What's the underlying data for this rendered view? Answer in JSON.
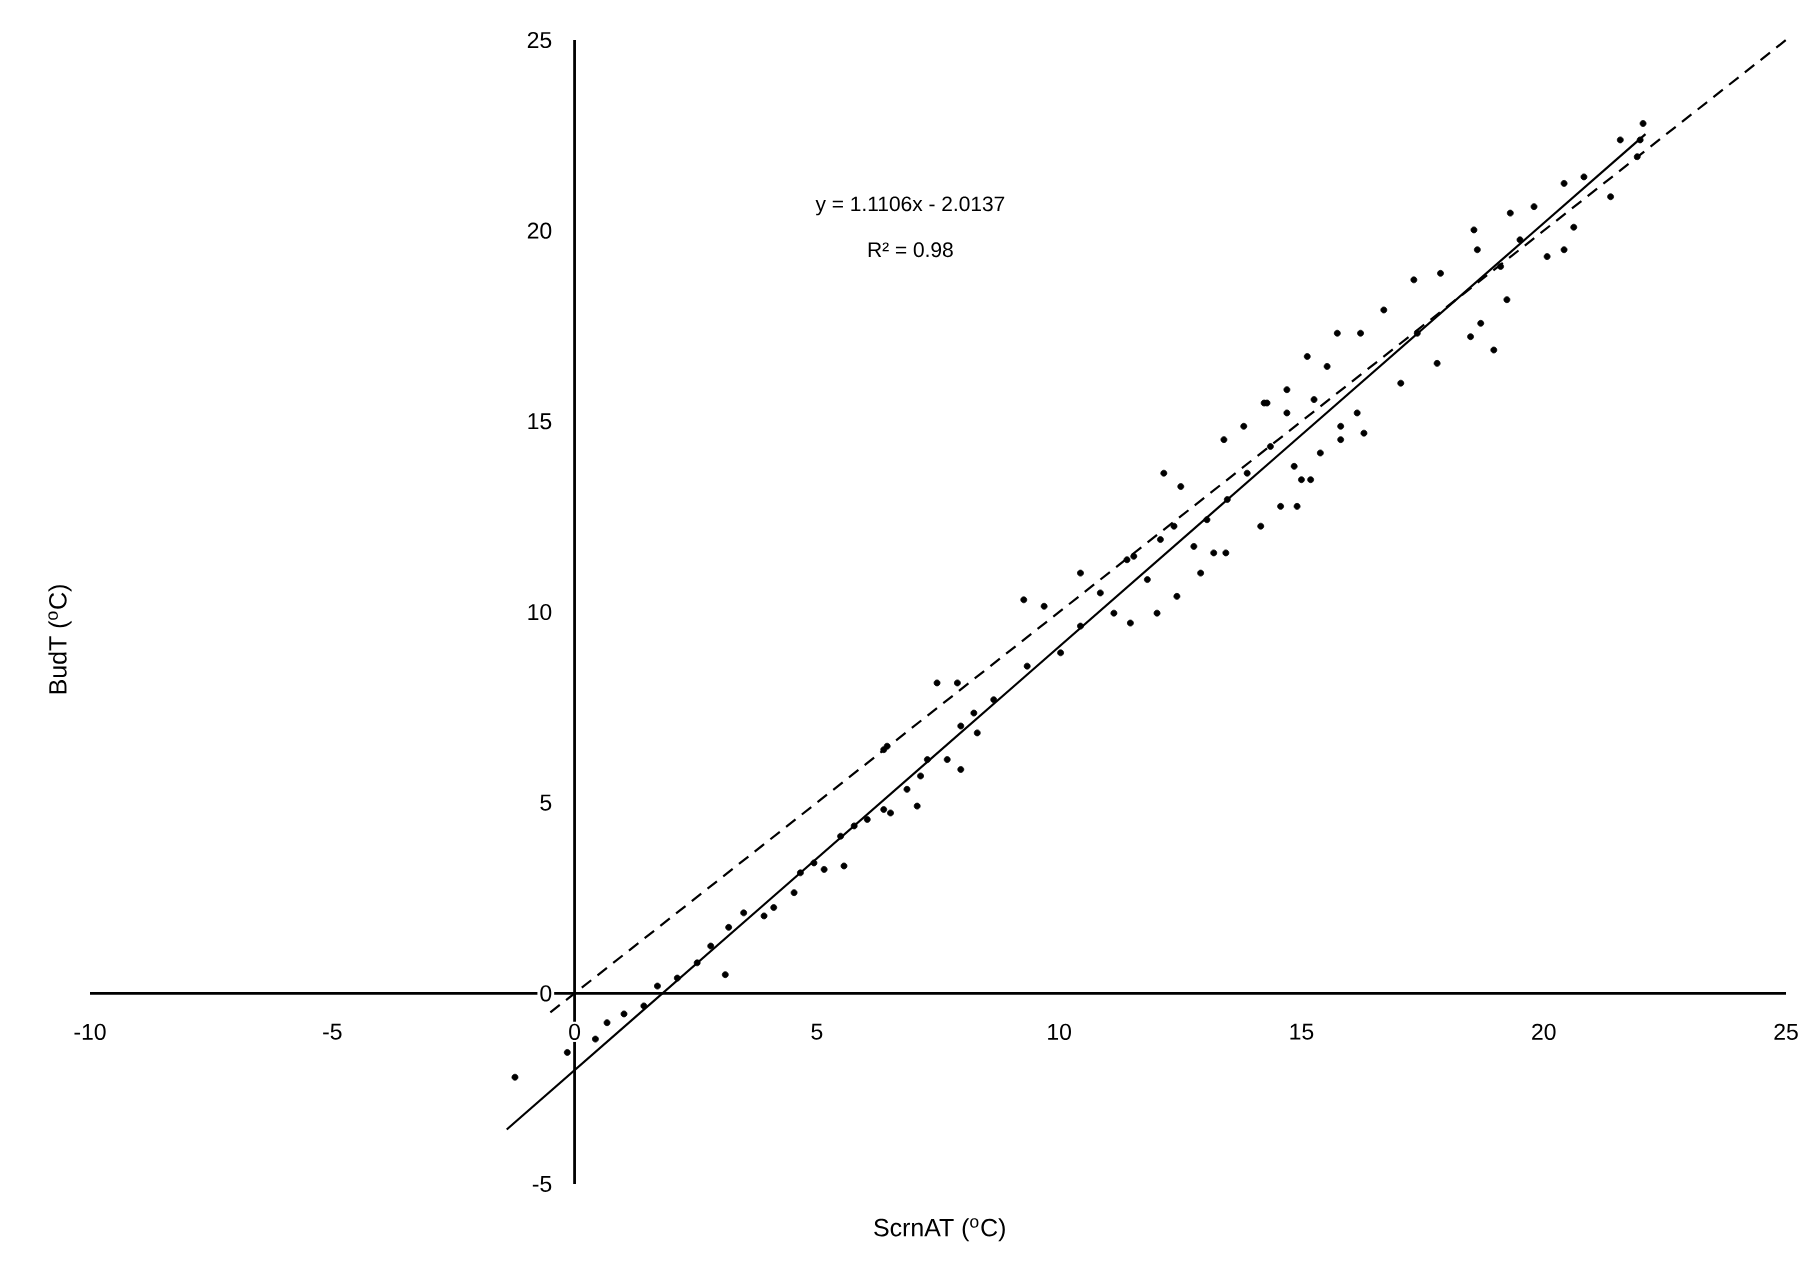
{
  "chart_data": {
    "type": "scatter",
    "xlabel": "ScrnAT ($^{o}$C)",
    "ylabel": "BudT ($^{o}$C)",
    "annotations": [
      "y = 1.1106x - 2.0137",
      "R² = 0.98"
    ],
    "xlim": [
      -10,
      25
    ],
    "ylim": [
      -5,
      25
    ],
    "xticks": [
      -10,
      -5,
      0,
      5,
      10,
      15,
      20,
      25
    ],
    "yticks": [
      -5,
      0,
      5,
      10,
      15,
      20,
      25
    ],
    "grid": false,
    "series": [
      {
        "marker": "circle",
        "color": "#000000",
        "x": [
          -1.23,
          -0.15,
          0.43,
          0.67,
          1.02,
          1.43,
          1.71,
          2.12,
          2.53,
          3.11,
          2.81,
          3.18,
          3.49,
          3.91,
          4.11,
          4.53,
          4.66,
          4.94,
          5.15,
          5.56,
          5.49,
          5.77,
          6.04,
          6.38,
          6.52,
          6.38,
          6.86,
          7.07,
          7.14,
          7.48,
          7.9,
          7.69,
          7.97,
          8.31,
          8.24,
          6.45,
          7.28,
          7.97,
          8.65,
          9.27,
          9.69,
          9.34,
          10.03,
          10.44,
          10.44,
          10.85,
          11.47,
          11.4,
          11.54,
          12.09,
          12.02,
          12.16,
          12.37,
          12.51,
          12.43,
          12.92,
          12.78,
          13.19,
          13.05,
          13.4,
          13.44,
          13.81,
          13.88,
          14.16,
          14.23,
          14.36,
          14.57,
          14.91,
          14.7,
          15.0,
          15.26,
          15.39,
          15.81,
          16.15,
          15.53,
          13.47,
          11.82,
          11.13,
          14.29,
          14.7,
          15.12,
          15.74,
          16.22,
          16.7,
          17.32,
          17.87,
          14.85,
          15.19,
          15.81,
          16.29,
          17.05,
          17.8,
          17.39,
          18.56,
          18.63,
          18.49,
          18.7,
          19.24,
          19.31,
          19.8,
          20.07,
          20.42,
          20.42,
          20.83,
          21.38,
          21.58,
          22.05,
          21.99,
          21.93,
          19.51,
          19.11,
          18.97,
          20.62
        ],
        "values": [
          -2.2,
          -1.55,
          -1.2,
          -0.77,
          -0.54,
          -0.33,
          0.19,
          0.4,
          0.8,
          0.49,
          1.24,
          1.73,
          2.11,
          2.03,
          2.25,
          2.64,
          3.16,
          3.42,
          3.25,
          3.34,
          4.12,
          4.39,
          4.56,
          4.82,
          4.73,
          6.39,
          5.35,
          4.91,
          5.7,
          8.14,
          8.14,
          6.13,
          5.87,
          6.83,
          7.35,
          6.48,
          6.13,
          7.01,
          7.7,
          10.32,
          10.15,
          8.58,
          8.93,
          11.02,
          9.63,
          10.5,
          9.71,
          11.37,
          11.46,
          11.9,
          9.97,
          13.64,
          12.25,
          13.29,
          10.41,
          11.02,
          11.72,
          11.55,
          12.42,
          14.52,
          11.55,
          14.87,
          13.64,
          12.25,
          15.48,
          14.34,
          12.77,
          12.77,
          15.22,
          13.47,
          15.57,
          14.17,
          14.87,
          15.22,
          16.44,
          12.95,
          10.85,
          9.97,
          15.48,
          15.83,
          16.7,
          17.31,
          17.31,
          17.92,
          18.71,
          18.88,
          13.82,
          13.47,
          14.52,
          14.69,
          16.0,
          16.52,
          17.31,
          20.02,
          19.5,
          17.22,
          17.57,
          18.19,
          20.46,
          20.63,
          19.32,
          19.5,
          21.24,
          21.41,
          20.89,
          22.38,
          22.81,
          22.38,
          21.94,
          19.76,
          19.06,
          16.87,
          20.09
        ]
      },
      {
        "type": "line",
        "marker": "none",
        "line_style": "solid",
        "color": "#000000",
        "x": [
          -1.4,
          22.1
        ],
        "values": [
          -3.57,
          22.53
        ]
      },
      {
        "type": "line",
        "marker": "none",
        "line_style": "dashed",
        "color": "#000000",
        "x": [
          -0.5,
          25
        ],
        "values": [
          -0.5,
          25
        ]
      }
    ]
  }
}
